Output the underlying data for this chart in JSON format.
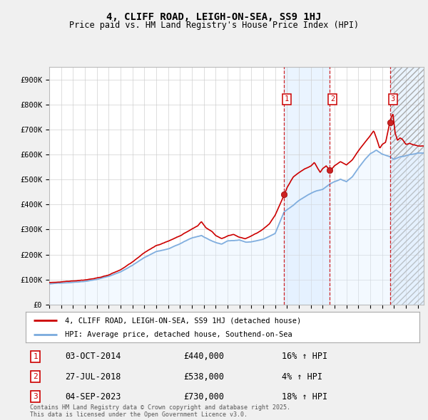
{
  "title": "4, CLIFF ROAD, LEIGH-ON-SEA, SS9 1HJ",
  "subtitle": "Price paid vs. HM Land Registry's House Price Index (HPI)",
  "ylabel_ticks": [
    "£0",
    "£100K",
    "£200K",
    "£300K",
    "£400K",
    "£500K",
    "£600K",
    "£700K",
    "£800K",
    "£900K"
  ],
  "ytick_values": [
    0,
    100000,
    200000,
    300000,
    400000,
    500000,
    600000,
    700000,
    800000,
    900000
  ],
  "ylim": [
    0,
    950000
  ],
  "xlim_start": 1995.0,
  "xlim_end": 2026.5,
  "sale_color": "#cc0000",
  "hpi_line_color": "#7aaadd",
  "hpi_fill_color": "#ddeeff",
  "legend_sale_label": "4, CLIFF ROAD, LEIGH-ON-SEA, SS9 1HJ (detached house)",
  "legend_hpi_label": "HPI: Average price, detached house, Southend-on-Sea",
  "sales": [
    {
      "label": "1",
      "date_x": 2014.75,
      "price": 440000,
      "date_str": "03-OCT-2014",
      "pct": "16%",
      "dir": "↑"
    },
    {
      "label": "2",
      "date_x": 2018.58,
      "price": 538000,
      "date_str": "27-JUL-2018",
      "pct": "4%",
      "dir": "↑"
    },
    {
      "label": "3",
      "date_x": 2023.67,
      "price": 730000,
      "date_str": "04-SEP-2023",
      "pct": "18%",
      "dir": "↑"
    }
  ],
  "footer_line1": "Contains HM Land Registry data © Crown copyright and database right 2025.",
  "footer_line2": "This data is licensed under the Open Government Licence v3.0.",
  "background_color": "#f0f0f0",
  "plot_bg_color": "#ffffff",
  "shaded_regions": [
    {
      "x_start": 2014.75,
      "x_end": 2018.58
    },
    {
      "x_start": 2023.67,
      "x_end": 2026.5
    }
  ]
}
